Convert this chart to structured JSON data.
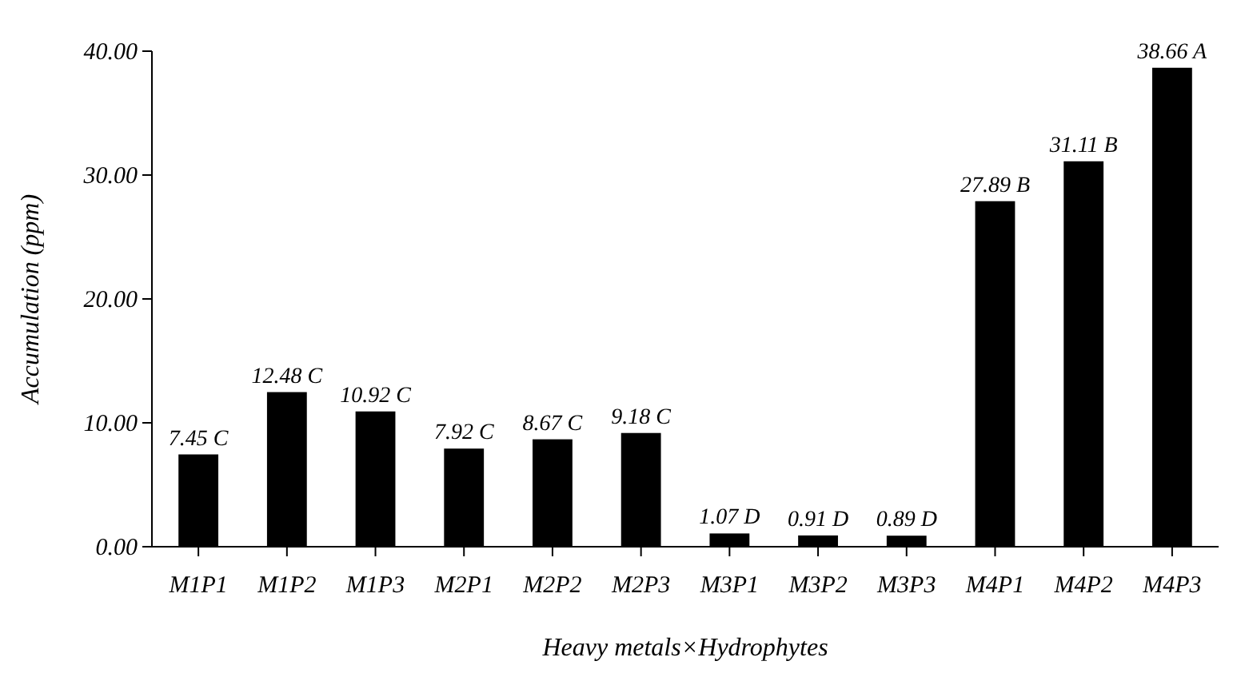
{
  "chart_data": {
    "type": "bar",
    "xlabel": "Heavy metals×Hydrophytes",
    "ylabel": "Accumulation (ppm)",
    "categories": [
      "M1P1",
      "M1P2",
      "M1P3",
      "M2P1",
      "M2P2",
      "M2P3",
      "M3P1",
      "M3P2",
      "M3P3",
      "M4P1",
      "M4P2",
      "M4P3"
    ],
    "values": [
      7.45,
      12.48,
      10.92,
      7.92,
      8.67,
      9.18,
      1.07,
      0.91,
      0.89,
      27.89,
      31.11,
      38.66
    ],
    "value_labels": [
      "7.45 C",
      "12.48 C",
      "10.92 C",
      "7.92 C",
      "8.67 C",
      "9.18 C",
      "1.07 D",
      "0.91 D",
      "0.89 D",
      "27.89 B",
      "31.11 B",
      "38.66 A"
    ],
    "color": "#000000",
    "ylim": [
      0,
      40
    ],
    "yticks": [
      {
        "value": 0,
        "label": "0.00"
      },
      {
        "value": 10,
        "label": "10.00"
      },
      {
        "value": 20,
        "label": "20.00"
      },
      {
        "value": 30,
        "label": "30.00"
      },
      {
        "value": 40,
        "label": "40.00"
      }
    ],
    "grid": false
  }
}
